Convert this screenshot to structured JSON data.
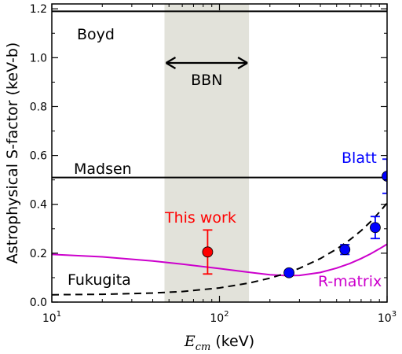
{
  "chart_data": {
    "type": "scatter",
    "xlabel_math": "E",
    "xlabel_sub": "cm",
    "xlabel_unit": "(keV)",
    "ylabel": "Astrophysical S-factor (keV-b)",
    "xscale": "log",
    "xlim": [
      10,
      1000
    ],
    "ylim": [
      0.0,
      1.22
    ],
    "grid": false,
    "x_ticks": [
      {
        "value": 10,
        "base": "10",
        "exp": "1"
      },
      {
        "value": 100,
        "base": "10",
        "exp": "2"
      },
      {
        "value": 1000,
        "base": "10",
        "exp": "3"
      }
    ],
    "y_ticks": [
      {
        "value": 0.0,
        "label": "0.0"
      },
      {
        "value": 0.2,
        "label": "0.2"
      },
      {
        "value": 0.4,
        "label": "0.4"
      },
      {
        "value": 0.6,
        "label": "0.6"
      },
      {
        "value": 0.8,
        "label": "0.8"
      },
      {
        "value": 1.0,
        "label": "1.0"
      },
      {
        "value": 1.2,
        "label": "1.2"
      }
    ],
    "bbn_band": {
      "x_range": [
        47,
        150
      ],
      "label": "BBN",
      "color": "#e2e2da"
    },
    "horizontal_lines": [
      {
        "label": "Boyd",
        "y": 1.19
      },
      {
        "label": "Madsen",
        "y": 0.51
      }
    ],
    "series": [
      {
        "name": "This work",
        "color": "#ff0000",
        "points": [
          {
            "x": 85,
            "y": 0.205,
            "yerr": 0.09
          }
        ]
      },
      {
        "name": "Blatt",
        "color": "#0000ff",
        "points": [
          {
            "x": 260,
            "y": 0.12,
            "yerr": 0.01
          },
          {
            "x": 560,
            "y": 0.215,
            "yerr": 0.02
          },
          {
            "x": 850,
            "y": 0.305,
            "yerr": 0.045
          },
          {
            "x": 1000,
            "y": 0.515,
            "yerr": 0.07
          }
        ]
      }
    ],
    "curves": [
      {
        "name": "R-matrix",
        "color": "#cc00cc",
        "style": "solid",
        "x": [
          10,
          20,
          40,
          60,
          100,
          150,
          200,
          250,
          300,
          400,
          500,
          600,
          700,
          800,
          900,
          1000
        ],
        "y": [
          0.195,
          0.185,
          0.168,
          0.155,
          0.137,
          0.122,
          0.112,
          0.108,
          0.109,
          0.121,
          0.139,
          0.158,
          0.178,
          0.198,
          0.218,
          0.237
        ]
      },
      {
        "name": "Fukugita",
        "color": "#000000",
        "style": "dashed",
        "x": [
          10,
          20,
          40,
          60,
          100,
          150,
          200,
          250,
          300,
          400,
          500,
          600,
          700,
          800,
          900,
          1000
        ],
        "y": [
          0.03,
          0.032,
          0.037,
          0.043,
          0.058,
          0.078,
          0.098,
          0.118,
          0.138,
          0.178,
          0.217,
          0.255,
          0.292,
          0.33,
          0.368,
          0.405
        ]
      }
    ]
  }
}
